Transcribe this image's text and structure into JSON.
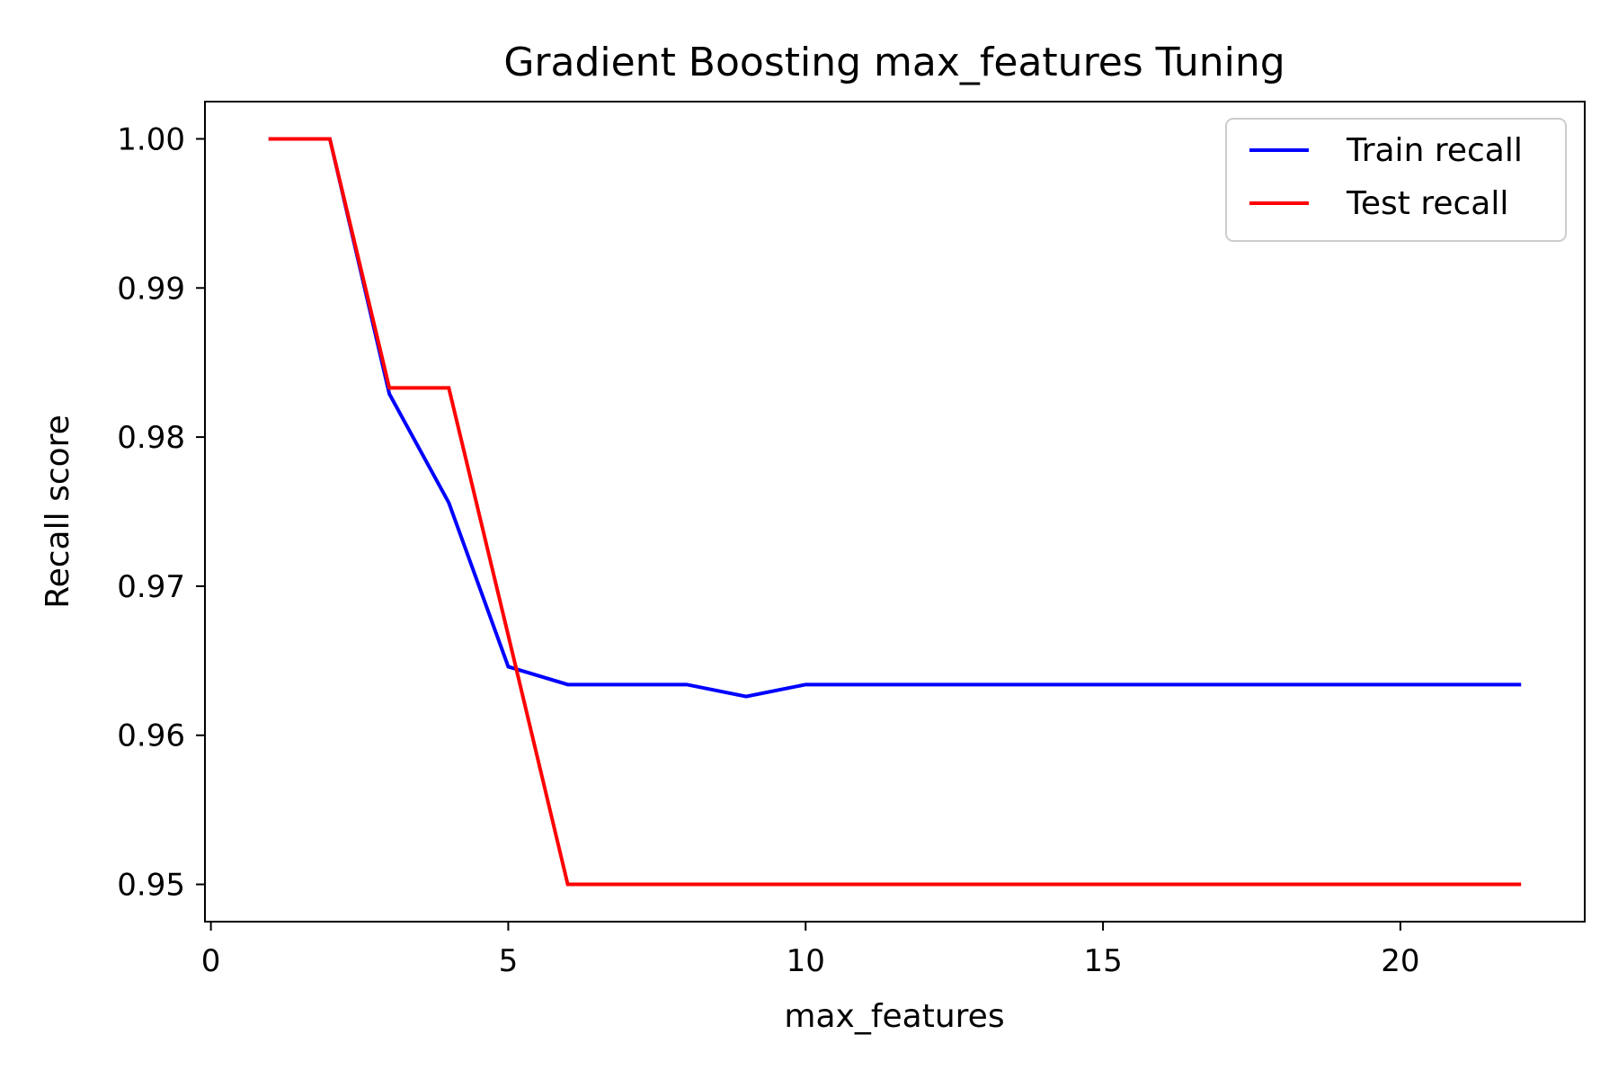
{
  "chart_data": {
    "type": "line",
    "title": "Gradient Boosting max_features Tuning",
    "xlabel": "max_features",
    "ylabel": "Recall score",
    "xlim": [
      -0.1,
      23.1
    ],
    "ylim": [
      0.9475,
      1.0025
    ],
    "x_ticks": [
      0,
      5,
      10,
      15,
      20
    ],
    "y_ticks": [
      0.95,
      0.96,
      0.97,
      0.98,
      0.99,
      1.0
    ],
    "y_tick_labels": [
      "0.95",
      "0.96",
      "0.97",
      "0.98",
      "0.99",
      "1.00"
    ],
    "grid": false,
    "legend_position": "top-right",
    "x": [
      1,
      2,
      3,
      4,
      5,
      6,
      7,
      8,
      9,
      10,
      11,
      12,
      13,
      14,
      15,
      16,
      17,
      18,
      19,
      20,
      21,
      22
    ],
    "series": [
      {
        "name": "Train recall",
        "color": "#0000ff",
        "values": [
          1.0,
          1.0,
          0.9829,
          0.9756,
          0.9646,
          0.9634,
          0.9634,
          0.9634,
          0.9626,
          0.9634,
          0.9634,
          0.9634,
          0.9634,
          0.9634,
          0.9634,
          0.9634,
          0.9634,
          0.9634,
          0.9634,
          0.9634,
          0.9634,
          0.9634
        ]
      },
      {
        "name": "Test recall",
        "color": "#ff0000",
        "values": [
          1.0,
          1.0,
          0.9833,
          0.9833,
          0.9667,
          0.95,
          0.95,
          0.95,
          0.95,
          0.95,
          0.95,
          0.95,
          0.95,
          0.95,
          0.95,
          0.95,
          0.95,
          0.95,
          0.95,
          0.95,
          0.95,
          0.95
        ]
      }
    ]
  }
}
